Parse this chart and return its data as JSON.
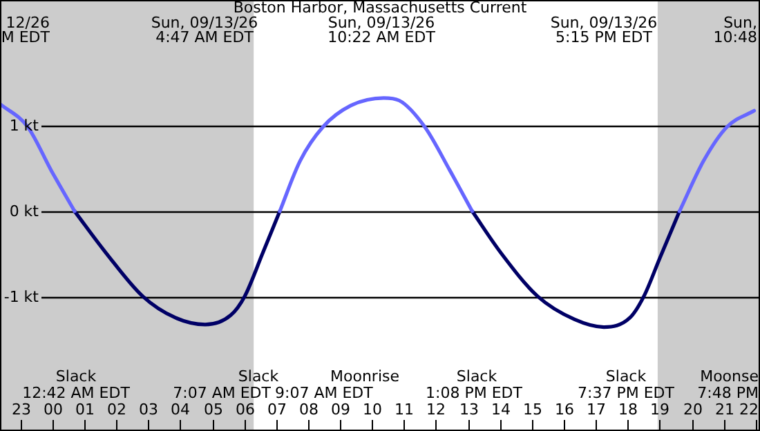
{
  "chart_data": {
    "type": "line",
    "title": "Boston Harbor, Massachusetts Current",
    "xlim": [
      "--09-12T22:22",
      "--09-13T22:08"
    ],
    "xticks": [
      {
        "value": "--09-12T23:00",
        "label": "23"
      },
      {
        "value": "--09-13T00:00",
        "label": "00"
      },
      {
        "value": "--09-13T01:00",
        "label": "01"
      },
      {
        "value": "--09-13T02:00",
        "label": "02"
      },
      {
        "value": "--09-13T03:00",
        "label": "03"
      },
      {
        "value": "--09-13T04:00",
        "label": "04"
      },
      {
        "value": "--09-13T05:00",
        "label": "05"
      },
      {
        "value": "--09-13T06:00",
        "label": "06"
      },
      {
        "value": "--09-13T07:00",
        "label": "07"
      },
      {
        "value": "--09-13T08:00",
        "label": "08"
      },
      {
        "value": "--09-13T09:00",
        "label": "09"
      },
      {
        "value": "--09-13T10:00",
        "label": "10"
      },
      {
        "value": "--09-13T11:00",
        "label": "11"
      },
      {
        "value": "--09-13T12:00",
        "label": "12"
      },
      {
        "value": "--09-13T13:00",
        "label": "13"
      },
      {
        "value": "--09-13T14:00",
        "label": "14"
      },
      {
        "value": "--09-13T15:00",
        "label": "15"
      },
      {
        "value": "--09-13T16:00",
        "label": "16"
      },
      {
        "value": "--09-13T17:00",
        "label": "17"
      },
      {
        "value": "--09-13T18:00",
        "label": "18"
      },
      {
        "value": "--09-13T19:00",
        "label": "19"
      },
      {
        "value": "--09-13T20:00",
        "label": "20"
      },
      {
        "value": "--09-13T21:00",
        "label": "21"
      },
      {
        "value": "--09-13T22:00",
        "label": "22"
      }
    ],
    "ylim": [
      -2.58,
      2.48
    ],
    "yticks": [
      {
        "value": 1,
        "label": "1 kt"
      },
      {
        "value": 0,
        "label": "0 kt"
      },
      {
        "value": -1,
        "label": "-1 kt"
      }
    ],
    "grid": "y",
    "legend": false,
    "line_style": "solid",
    "marker": "none",
    "series": [
      {
        "color": "#6666ff",
        "x": [
          "--09-12T22:22",
          "--09-12T23:14",
          "--09-12T23:58",
          "--09-13T00:42",
          "--09-13T04:00",
          "--09-13T07:07",
          "--09-13T07:45",
          "--09-13T08:28",
          "--09-13T09:20",
          "--09-13T10:22",
          "--09-13T10:51",
          "--09-13T11:39",
          "--09-13T12:26",
          "--09-13T13:08",
          "--09-13T16:00",
          "--09-13T19:37",
          "--09-13T20:22",
          "--09-13T21:06",
          "--09-13T21:57"
        ],
        "values": [
          1.26,
          0.99,
          0.48,
          0,
          null,
          0,
          0.59,
          0.99,
          1.24,
          1.33,
          1.3,
          0.99,
          0.48,
          0,
          null,
          0,
          0.59,
          0.99,
          1.18
        ]
      },
      {
        "color": "#000066",
        "x": [
          "--09-13T00:42",
          "--09-13T01:41",
          "--09-13T02:50",
          "--09-13T03:51",
          "--09-13T04:47",
          "--09-13T05:35",
          "--09-13T06:01",
          "--09-13T06:35",
          "--09-13T07:07",
          "--09-13T10:00",
          "--09-13T13:08",
          "--09-13T14:02",
          "--09-13T15:11",
          "--09-13T16:20",
          "--09-13T17:15",
          "--09-13T18:04",
          "--09-13T18:30",
          "--09-13T19:00",
          "--09-13T19:37"
        ],
        "values": [
          0,
          -0.49,
          -1.0,
          -1.25,
          -1.33,
          -1.22,
          -1.0,
          -0.49,
          0,
          null,
          0,
          -0.49,
          -1.0,
          -1.27,
          -1.36,
          -1.25,
          -1.0,
          -0.55,
          0
        ]
      }
    ],
    "bands": [
      {
        "axis": "x",
        "from": "--09-12T22:22",
        "to": "--09-13T06:18",
        "color": "#cccccc"
      },
      {
        "axis": "x",
        "from": "--09-13T18:56",
        "to": "--09-13T22:08",
        "color": "#cccccc"
      }
    ],
    "annotations": [
      "12/26\nM EDT",
      "Sun, 09/13/26\n4:47 AM EDT",
      "Sun, 09/13/26\n10:22 AM EDT",
      "Sun, 09/13/26\n5:15 PM EDT",
      "Sun,\n10:48",
      "Slack\n12:42 AM EDT",
      "Slack\n7:07 AM EDT",
      "Moonrise\n9:07 AM EDT",
      "Slack\n1:08 PM EDT",
      "Slack\n7:37 PM EDT",
      "Moonse\n7:48 PM"
    ]
  }
}
